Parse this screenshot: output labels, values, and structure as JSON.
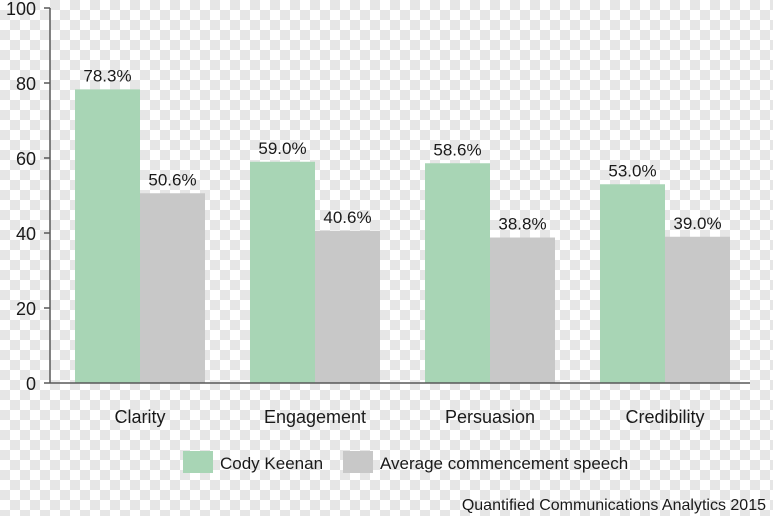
{
  "chart_data": {
    "type": "bar",
    "categories": [
      "Clarity",
      "Engagement",
      "Persuasion",
      "Credibility"
    ],
    "series": [
      {
        "name": "Cody Keenan",
        "values": [
          78.3,
          59.0,
          58.6,
          53.0
        ],
        "labels": [
          "78.3%",
          "59.0%",
          "58.6%",
          "53.0%"
        ],
        "color": "#a8d5b5"
      },
      {
        "name": "Average commencement speech",
        "values": [
          50.6,
          40.6,
          38.8,
          39.0
        ],
        "labels": [
          "50.6%",
          "40.6%",
          "38.8%",
          "39.0%"
        ],
        "color": "#c8c8c8"
      }
    ],
    "ylim": [
      0,
      100
    ],
    "yticks": [
      0,
      20,
      40,
      60,
      80,
      100
    ],
    "grid": false,
    "legend": "bottom",
    "source": "Quantified Communications Analytics 2015"
  }
}
